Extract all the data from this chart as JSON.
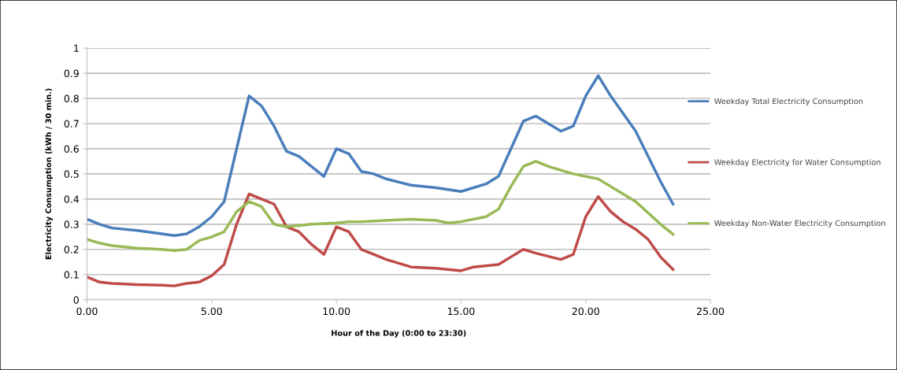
{
  "chart_data": {
    "type": "line",
    "xlabel": "Hour of the Day (0:00 to 23:30)",
    "ylabel": "Electricity Consumption (kWh / 30 min.)",
    "xlim": [
      0,
      25
    ],
    "xticks": [
      {
        "value": 0,
        "label": "0.00"
      },
      {
        "value": 5,
        "label": "5.00"
      },
      {
        "value": 10,
        "label": "10.00"
      },
      {
        "value": 15,
        "label": "15.00"
      },
      {
        "value": 20,
        "label": "20.00"
      },
      {
        "value": 25,
        "label": "25.00"
      }
    ],
    "ylim": [
      0,
      1
    ],
    "yticks": [
      0,
      0.1,
      0.2,
      0.3,
      0.4,
      0.5,
      0.6,
      0.7,
      0.8,
      0.9,
      1
    ],
    "grid": "y",
    "legend": "right",
    "marker": "none",
    "line_style": "solid",
    "series": [
      {
        "name": "Weekday Total Electricity Consumption",
        "color": "#4a7ebb",
        "x": [
          0,
          0.5,
          1,
          2,
          3,
          3.5,
          4,
          4.5,
          5,
          5.5,
          6,
          6.5,
          7,
          7.5,
          8,
          8.5,
          9,
          9.5,
          10,
          10.5,
          11,
          11.5,
          12,
          13,
          14,
          15,
          16,
          16.5,
          17,
          17.5,
          18,
          18.5,
          19,
          19.5,
          20,
          20.5,
          21,
          22,
          23,
          23.5
        ],
        "values": [
          0.32,
          0.3,
          0.285,
          0.275,
          0.262,
          0.255,
          0.262,
          0.29,
          0.33,
          0.39,
          0.6,
          0.81,
          0.77,
          0.69,
          0.59,
          0.57,
          0.53,
          0.49,
          0.6,
          0.58,
          0.51,
          0.5,
          0.48,
          0.455,
          0.445,
          0.43,
          0.46,
          0.49,
          0.6,
          0.71,
          0.73,
          0.7,
          0.67,
          0.69,
          0.81,
          0.89,
          0.81,
          0.67,
          0.47,
          0.38
        ]
      },
      {
        "name": "Weekday Electricity for Water Consumption",
        "color": "#be4b48",
        "x": [
          0,
          0.5,
          1,
          2,
          3,
          3.5,
          4,
          4.5,
          5,
          5.5,
          6,
          6.5,
          7,
          7.5,
          8,
          8.5,
          9,
          9.5,
          10,
          10.5,
          11,
          11.5,
          12,
          13,
          14,
          15,
          15.5,
          16.5,
          17,
          17.5,
          18,
          19,
          19.5,
          20,
          20.5,
          21,
          21.5,
          22,
          22.5,
          23,
          23.5
        ],
        "values": [
          0.09,
          0.07,
          0.065,
          0.06,
          0.058,
          0.055,
          0.065,
          0.07,
          0.095,
          0.14,
          0.3,
          0.42,
          0.4,
          0.38,
          0.29,
          0.27,
          0.22,
          0.18,
          0.29,
          0.27,
          0.2,
          0.18,
          0.16,
          0.13,
          0.125,
          0.115,
          0.13,
          0.14,
          0.17,
          0.2,
          0.185,
          0.16,
          0.18,
          0.33,
          0.41,
          0.35,
          0.31,
          0.28,
          0.24,
          0.17,
          0.12
        ]
      },
      {
        "name": "Weekday Non-Water Electricity Consumption",
        "color": "#98b954",
        "x": [
          0,
          0.5,
          1,
          2,
          3,
          3.5,
          4,
          4.5,
          5,
          5.5,
          6,
          6.5,
          7,
          7.5,
          8,
          8.5,
          9,
          10,
          10.5,
          11,
          12,
          13,
          14,
          14.5,
          15,
          16,
          16.5,
          17,
          17.5,
          18,
          18.5,
          19,
          19.5,
          20,
          20.5,
          21,
          22,
          23,
          23.5
        ],
        "values": [
          0.24,
          0.225,
          0.215,
          0.205,
          0.2,
          0.195,
          0.2,
          0.235,
          0.25,
          0.27,
          0.35,
          0.39,
          0.37,
          0.3,
          0.29,
          0.295,
          0.3,
          0.305,
          0.31,
          0.31,
          0.315,
          0.32,
          0.315,
          0.305,
          0.31,
          0.33,
          0.36,
          0.45,
          0.53,
          0.55,
          0.53,
          0.515,
          0.5,
          0.49,
          0.48,
          0.45,
          0.39,
          0.3,
          0.26
        ]
      }
    ]
  }
}
